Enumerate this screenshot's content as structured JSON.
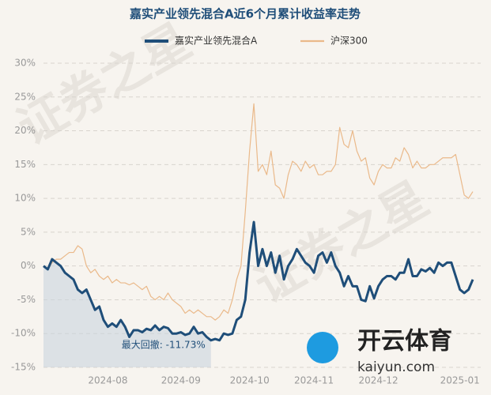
{
  "chart_data": {
    "type": "line",
    "title": "嘉实产业领先混合A近6个月累计收益率走势",
    "watermark": "证券之星",
    "logo_text": "开云体育",
    "logo_url": "kaiyun.com",
    "drawdown_label": "最大回撤: -11.73%",
    "categories": [
      null,
      null,
      null,
      null,
      null,
      null,
      null,
      null,
      null,
      null,
      null,
      null,
      null,
      null,
      null,
      "2024-08",
      null,
      null,
      null,
      null,
      null,
      null,
      null,
      null,
      null,
      null,
      null,
      null,
      null,
      null,
      null,
      null,
      "2024-09",
      null,
      null,
      null,
      null,
      null,
      null,
      null,
      null,
      null,
      null,
      null,
      null,
      null,
      null,
      null,
      "2024-10",
      null,
      null,
      null,
      null,
      null,
      null,
      null,
      null,
      null,
      null,
      null,
      null,
      null,
      null,
      "2024-11",
      null,
      null,
      null,
      null,
      null,
      null,
      null,
      null,
      null,
      null,
      null,
      null,
      null,
      null,
      "2024-12",
      null,
      null,
      null,
      null,
      null,
      null,
      null,
      null,
      null,
      null,
      null,
      null,
      null,
      null,
      null,
      null,
      null,
      null,
      "2025-01",
      null,
      null,
      null
    ],
    "series": [
      {
        "name": "嘉实产业领先混合A",
        "color": "#1f4e79",
        "width": 3,
        "values": [
          0,
          -0.5,
          1,
          0.5,
          0,
          -1,
          -1.5,
          -2,
          -3.5,
          -4,
          -3.5,
          -5,
          -6.5,
          -6,
          -8,
          -9,
          -8.5,
          -9,
          -8,
          -9,
          -10.5,
          -9.5,
          -9.5,
          -9.8,
          -9.3,
          -9.5,
          -8.8,
          -9.5,
          -9,
          -9.2,
          -10,
          -10,
          -9.8,
          -10.2,
          -10,
          -9,
          -10,
          -9.8,
          -10.5,
          -11,
          -10.8,
          -11,
          -10,
          -10.2,
          -10,
          -8,
          -7.5,
          -5,
          2,
          6.5,
          0,
          2.5,
          0,
          2,
          -1,
          1.5,
          -2,
          0,
          1,
          2.5,
          1.5,
          0.5,
          0,
          -1,
          1.5,
          2,
          0.5,
          2,
          0,
          -1,
          -3,
          -1.5,
          -3,
          -3,
          -5,
          -5.2,
          -3,
          -4.8,
          -3,
          -2,
          -1.5,
          -1.5,
          -2,
          -1,
          -1,
          1,
          -1.5,
          -1.5,
          -0.5,
          -0.8,
          -0.3,
          -1,
          0.5,
          0,
          0.5,
          0.5,
          -1.5,
          -3.5,
          -4,
          -3.5,
          -2
        ]
      },
      {
        "name": "沪深300",
        "color": "#eab98a",
        "width": 1.2,
        "values": [
          0,
          -0.5,
          0.5,
          1,
          1,
          1.5,
          2,
          2,
          3,
          2.5,
          0,
          -1,
          -0.5,
          -1.5,
          -2,
          -1.5,
          -2.5,
          -2,
          -2.5,
          -2.5,
          -2.8,
          -2.5,
          -3,
          -3.5,
          -3,
          -4.5,
          -5,
          -4.5,
          -5,
          -4,
          -5,
          -5.5,
          -6,
          -7,
          -6.5,
          -7,
          -6.5,
          -7,
          -7.5,
          -7.5,
          -8,
          -7.5,
          -6.5,
          -7,
          -5,
          -2,
          0,
          8,
          17,
          24,
          14,
          15,
          13.5,
          17,
          12,
          11.5,
          10,
          13.5,
          15.5,
          15,
          14,
          15.5,
          14.5,
          15,
          13.5,
          13.5,
          14,
          14,
          15,
          20.5,
          18,
          17.5,
          20,
          17,
          15.5,
          16,
          13,
          12,
          14,
          15,
          14.5,
          14.5,
          16,
          15.5,
          17.5,
          16.5,
          14.5,
          15.5,
          14.5,
          14.5,
          15,
          15,
          15.5,
          16,
          16,
          16,
          16.5,
          13.5,
          10.5,
          10,
          11
        ]
      }
    ],
    "ylim": [
      -15,
      30
    ],
    "yticks": [
      {
        "value": -15,
        "label": "-15%"
      },
      {
        "value": -10,
        "label": "-10%"
      },
      {
        "value": -5,
        "label": "-5%"
      },
      {
        "value": 0,
        "label": "0%"
      },
      {
        "value": 5,
        "label": "5%"
      },
      {
        "value": 10,
        "label": "10%"
      },
      {
        "value": 15,
        "label": "15%"
      },
      {
        "value": 20,
        "label": "20%"
      },
      {
        "value": 25,
        "label": "25%"
      },
      {
        "value": 30,
        "label": "30%"
      }
    ],
    "grid": true,
    "legend": "top"
  }
}
